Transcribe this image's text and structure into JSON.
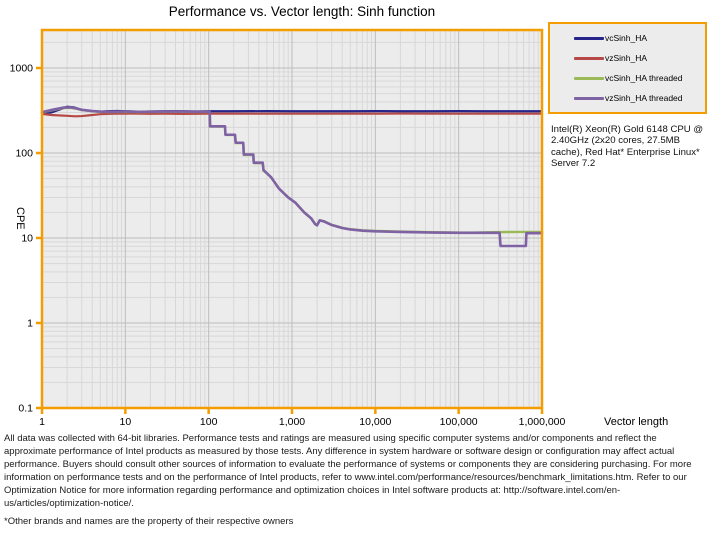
{
  "chart_data": {
    "type": "line",
    "title": "Performance vs. Vector length: Sinh function",
    "xlabel": "Vector length",
    "ylabel": "CPE",
    "x_scale": "log",
    "y_scale": "log",
    "xlim": [
      1,
      1000000
    ],
    "ylim": [
      0.1,
      2800
    ],
    "grid": "major and minor log gridlines, both axes",
    "legend_position": "outside-top-right",
    "colors": {
      "plot_background": "#ececec",
      "plot_border": "#F49D00",
      "major_grid": "#bdbdbd",
      "minor_grid": "#d8d8d8",
      "tick": "#F49D00"
    },
    "x_ticks": {
      "values": [
        1,
        10,
        100,
        1000,
        10000,
        100000,
        1000000
      ],
      "labels": [
        "1",
        "10",
        "100",
        "1,000",
        "10,000",
        "100,000",
        "1,000,000"
      ]
    },
    "y_ticks": {
      "values": [
        0.1,
        1,
        10,
        100,
        1000
      ],
      "labels": [
        "0.1",
        "1",
        "10",
        "100",
        "1000"
      ]
    },
    "series": [
      {
        "name": "vcSinh_HA",
        "color": "#25258A",
        "width": 2.2,
        "points": [
          [
            1,
            295
          ],
          [
            1.3,
            300
          ],
          [
            1.7,
            330
          ],
          [
            2,
            350
          ],
          [
            2.4,
            345
          ],
          [
            3,
            322
          ],
          [
            4,
            310
          ],
          [
            5,
            306
          ],
          [
            6,
            310
          ],
          [
            8,
            312
          ],
          [
            10,
            310
          ],
          [
            15,
            306
          ],
          [
            20,
            308
          ],
          [
            30,
            310
          ],
          [
            50,
            310
          ],
          [
            70,
            308
          ],
          [
            100,
            310
          ],
          [
            200,
            310
          ],
          [
            500,
            311
          ],
          [
            1000,
            310
          ],
          [
            2000,
            310
          ],
          [
            5000,
            310
          ],
          [
            10000,
            311
          ],
          [
            20000,
            310
          ],
          [
            50000,
            310
          ],
          [
            100000,
            311
          ],
          [
            200000,
            310
          ],
          [
            500000,
            310
          ],
          [
            1000000,
            310
          ]
        ]
      },
      {
        "name": "vzSinh_HA",
        "color": "#B64946",
        "width": 2.2,
        "points": [
          [
            1,
            288
          ],
          [
            1.3,
            280
          ],
          [
            1.7,
            276
          ],
          [
            2,
            274
          ],
          [
            2.5,
            270
          ],
          [
            3,
            272
          ],
          [
            4,
            280
          ],
          [
            5,
            286
          ],
          [
            6,
            288
          ],
          [
            8,
            290
          ],
          [
            10,
            291
          ],
          [
            15,
            290
          ],
          [
            20,
            289
          ],
          [
            30,
            290
          ],
          [
            50,
            288
          ],
          [
            70,
            289
          ],
          [
            100,
            290
          ],
          [
            200,
            290
          ],
          [
            500,
            290
          ],
          [
            1000,
            290
          ],
          [
            2000,
            290
          ],
          [
            5000,
            290
          ],
          [
            10000,
            290
          ],
          [
            20000,
            291
          ],
          [
            50000,
            290
          ],
          [
            100000,
            290
          ],
          [
            200000,
            290
          ],
          [
            500000,
            290
          ],
          [
            1000000,
            290
          ]
        ]
      },
      {
        "name": "vcSinh_HA threaded",
        "color": "#9ABA58",
        "width": 2.4,
        "points": [
          [
            1,
            300
          ],
          [
            1.4,
            322
          ],
          [
            1.8,
            338
          ],
          [
            2.2,
            340
          ],
          [
            2.6,
            332
          ],
          [
            3,
            320
          ],
          [
            4,
            310
          ],
          [
            5,
            305
          ],
          [
            6,
            303
          ],
          [
            8,
            304
          ],
          [
            10,
            305
          ],
          [
            15,
            303
          ],
          [
            20,
            304
          ],
          [
            30,
            305
          ],
          [
            50,
            305
          ],
          [
            70,
            304
          ],
          [
            100,
            304
          ],
          [
            103,
            304
          ],
          [
            104,
            205
          ],
          [
            157,
            205
          ],
          [
            159,
            163
          ],
          [
            207,
            163
          ],
          [
            211,
            131
          ],
          [
            260,
            131
          ],
          [
            264,
            95
          ],
          [
            343,
            95
          ],
          [
            348,
            76
          ],
          [
            445,
            76
          ],
          [
            455,
            62
          ],
          [
            560,
            52
          ],
          [
            700,
            38
          ],
          [
            900,
            30
          ],
          [
            1100,
            26
          ],
          [
            1400,
            20
          ],
          [
            1700,
            17
          ],
          [
            1900,
            14.6
          ],
          [
            2000,
            14.2
          ],
          [
            2150,
            16.2
          ],
          [
            2400,
            15.8
          ],
          [
            3000,
            14.3
          ],
          [
            4000,
            13.2
          ],
          [
            5000,
            12.7
          ],
          [
            7000,
            12.3
          ],
          [
            10000,
            12.1
          ],
          [
            20000,
            11.9
          ],
          [
            50000,
            11.7
          ],
          [
            100000,
            11.6
          ],
          [
            150000,
            11.6
          ],
          [
            250000,
            11.7
          ],
          [
            500000,
            11.8
          ],
          [
            700000,
            11.8
          ],
          [
            1000000,
            11.8
          ]
        ]
      },
      {
        "name": "vzSinh_HA threaded",
        "color": "#7E62A3",
        "width": 2.6,
        "points": [
          [
            1,
            302
          ],
          [
            1.4,
            326
          ],
          [
            1.8,
            342
          ],
          [
            2.2,
            344
          ],
          [
            2.6,
            334
          ],
          [
            3,
            322
          ],
          [
            4,
            312
          ],
          [
            5,
            307
          ],
          [
            6,
            305
          ],
          [
            8,
            306
          ],
          [
            10,
            307
          ],
          [
            15,
            305
          ],
          [
            20,
            306
          ],
          [
            30,
            307
          ],
          [
            50,
            307
          ],
          [
            70,
            306
          ],
          [
            100,
            306
          ],
          [
            103,
            306
          ],
          [
            104,
            206
          ],
          [
            157,
            206
          ],
          [
            159,
            164
          ],
          [
            207,
            164
          ],
          [
            211,
            132
          ],
          [
            260,
            132
          ],
          [
            264,
            96
          ],
          [
            343,
            96
          ],
          [
            348,
            77
          ],
          [
            445,
            77
          ],
          [
            455,
            63
          ],
          [
            560,
            52
          ],
          [
            700,
            38
          ],
          [
            900,
            30
          ],
          [
            1100,
            26
          ],
          [
            1400,
            20
          ],
          [
            1700,
            17
          ],
          [
            1900,
            14.5
          ],
          [
            2000,
            14.1
          ],
          [
            2150,
            16.1
          ],
          [
            2400,
            15.7
          ],
          [
            3000,
            14.2
          ],
          [
            4000,
            13.1
          ],
          [
            5000,
            12.6
          ],
          [
            7000,
            12.2
          ],
          [
            10000,
            12.0
          ],
          [
            20000,
            11.8
          ],
          [
            50000,
            11.6
          ],
          [
            100000,
            11.5
          ],
          [
            200000,
            11.5
          ],
          [
            310000,
            11.5
          ],
          [
            318000,
            8.05
          ],
          [
            640000,
            8.05
          ],
          [
            650000,
            11.4
          ],
          [
            800000,
            11.4
          ],
          [
            1000000,
            11.4
          ]
        ]
      }
    ]
  },
  "info_box": {
    "text": "Intel(R) Xeon(R) Gold 6148 CPU @ 2.40GHz (2x20 cores, 27.5MB cache), Red Hat* Enterprise Linux* Server 7.2"
  },
  "footer": {
    "disclaimer": "All data was collected with 64-bit libraries. Performance tests and ratings are measured using specific computer systems and/or components and reflect the approximate performance of Intel products as measured by those tests. Any difference in system hardware or software design or configuration may affect actual performance. Buyers should consult other sources of information to evaluate the performance of systems or components they are considering purchasing. For more information on performance tests and on the performance of Intel products, refer to www.intel.com/performance/resources/benchmark_limitations.htm.  Refer to our Optimization Notice for more information regarding performance and optimization choices in Intel software products at: http://software.intel.com/en-us/articles/optimization-notice/.",
    "brands_note": "*Other brands and names are the property of their respective owners"
  }
}
